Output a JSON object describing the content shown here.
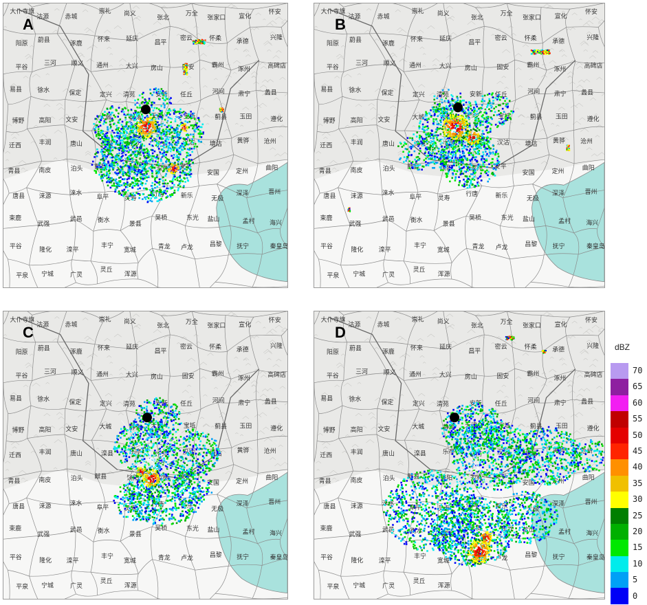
{
  "panels": [
    {
      "id": "a",
      "letter": "A"
    },
    {
      "id": "b",
      "letter": "B"
    },
    {
      "id": "c",
      "letter": "C"
    },
    {
      "id": "d",
      "letter": "D"
    }
  ],
  "place_names": [
    "大仆寺旗",
    "沽源",
    "赤城",
    "崇礼",
    "尚义",
    "张北",
    "万全",
    "张家口",
    "宣化",
    "怀安",
    "阳原",
    "蔚县",
    "涿鹿",
    "怀来",
    "延庆",
    "昌平",
    "密云",
    "怀柔",
    "承德",
    "兴隆",
    "平谷",
    "三河",
    "顺义",
    "通州",
    "大兴",
    "房山",
    "固安",
    "霸州",
    "涿州",
    "高碑店",
    "易县",
    "徐水",
    "保定",
    "定兴",
    "清苑",
    "安新",
    "任丘",
    "河间",
    "肃宁",
    "蠡县",
    "博野",
    "高阳",
    "文安",
    "大城",
    "静海",
    "天津",
    "宝坻",
    "蓟县",
    "玉田",
    "遵化",
    "迁西",
    "丰润",
    "唐山",
    "滦县",
    "乐亭",
    "宁河",
    "汉沽",
    "塘沽",
    "黄骅",
    "沧州",
    "青县",
    "南皮",
    "泊头",
    "献县",
    "饶阳",
    "深州",
    "安平",
    "安国",
    "定州",
    "曲阳",
    "唐县",
    "涞源",
    "涞水",
    "阜平",
    "灵寿",
    "行唐",
    "新乐",
    "无极",
    "深泽",
    "晋州",
    "束鹿",
    "武强",
    "武邑",
    "衡水",
    "景县",
    "吴桥",
    "东光",
    "盐山",
    "孟村",
    "海兴",
    "平谷",
    "隆化",
    "滦平",
    "丰宁",
    "宽城",
    "青龙",
    "卢龙",
    "昌黎",
    "抚宁",
    "秦皇岛",
    "平泉",
    "宁城",
    "广灵",
    "灵丘",
    "浑源"
  ],
  "legend": {
    "title": "dBZ",
    "bins": [
      {
        "label": "70",
        "color": "#b89af0"
      },
      {
        "label": "65",
        "color": "#8e1fa0"
      },
      {
        "label": "60",
        "color": "#f21ef2"
      },
      {
        "label": "55",
        "color": "#c00000"
      },
      {
        "label": "50",
        "color": "#e40000"
      },
      {
        "label": "45",
        "color": "#ff2400"
      },
      {
        "label": "40",
        "color": "#ff9000"
      },
      {
        "label": "35",
        "color": "#f0c000"
      },
      {
        "label": "30",
        "color": "#ffff00"
      },
      {
        "label": "25",
        "color": "#007f00"
      },
      {
        "label": "20",
        "color": "#00b000"
      },
      {
        "label": "15",
        "color": "#00e800"
      },
      {
        "label": "10",
        "color": "#00ecec"
      },
      {
        "label": "5",
        "color": "#00a0f6"
      },
      {
        "label": "0",
        "color": "#0000f6"
      }
    ]
  },
  "colors": {
    "land": "#e9e9e7",
    "sea": "#a9e2dd",
    "border": "#8a8a8a",
    "marker": "#000000"
  }
}
